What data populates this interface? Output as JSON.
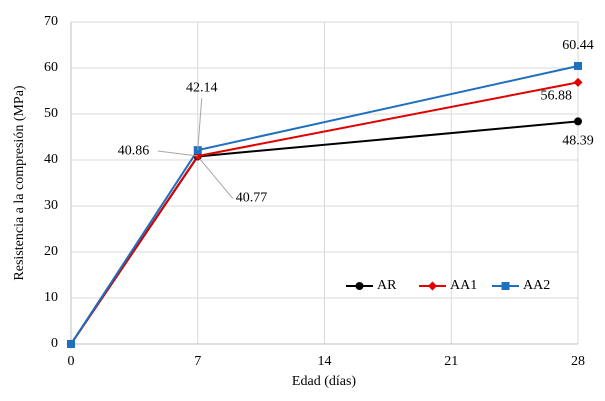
{
  "chart_data": {
    "type": "line",
    "x_label": "Edad (días)",
    "y_label": "Resistencia a la compresión (MPa)",
    "x": [
      0,
      7,
      28
    ],
    "series": [
      {
        "name": "AR",
        "color": "#000000",
        "marker": "circle",
        "values": [
          0,
          40.77,
          48.39
        ]
      },
      {
        "name": "AA1",
        "color": "#e00000",
        "marker": "diamond",
        "values": [
          0,
          40.86,
          56.88
        ]
      },
      {
        "name": "AA2",
        "color": "#1f6fbf",
        "marker": "square",
        "values": [
          0,
          42.14,
          60.44
        ]
      }
    ],
    "xlim": [
      0,
      28
    ],
    "xticks": [
      0,
      7,
      14,
      21,
      28
    ],
    "ylim": [
      0,
      70
    ],
    "yticks": [
      0,
      10,
      20,
      30,
      40,
      50,
      60,
      70
    ],
    "grid": true,
    "legend": "bottom-right"
  }
}
